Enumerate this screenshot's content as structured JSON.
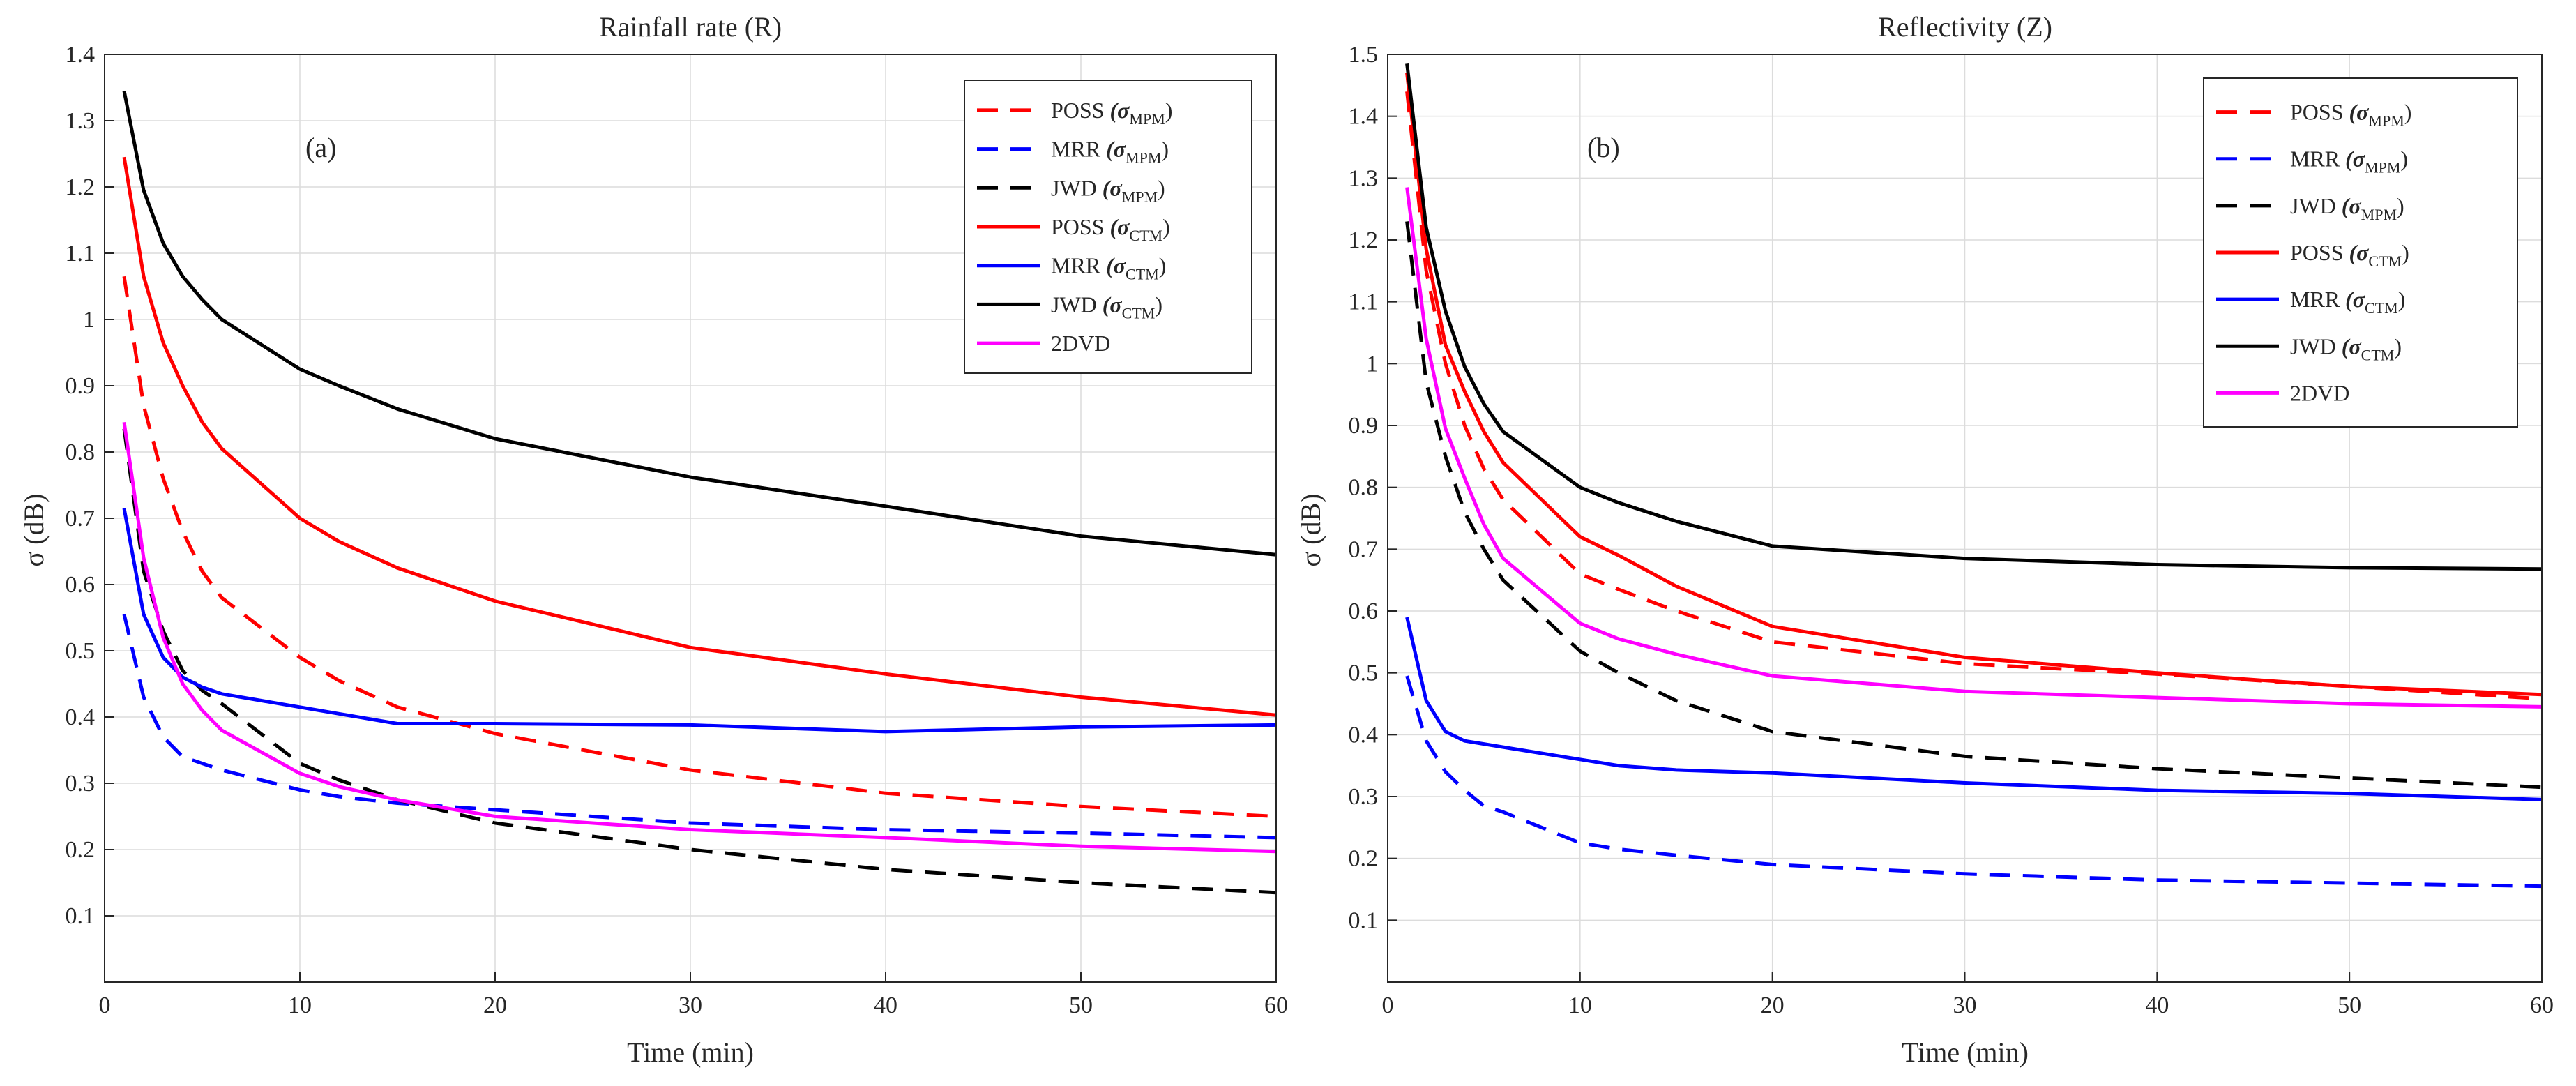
{
  "colors": {
    "red": "#ff0000",
    "blue": "#0000ff",
    "black": "#000000",
    "magenta": "#ff00ff",
    "grid": "#dcdcdc",
    "axis": "#262626"
  },
  "chart_data": [
    {
      "type": "line",
      "title": "Rainfall rate (R)",
      "panel_tag": "(a)",
      "xlabel": "Time (min)",
      "ylabel": "σ (dB)",
      "xlim": [
        0,
        60
      ],
      "ylim": [
        0,
        1.4
      ],
      "xticks": [
        0,
        10,
        20,
        30,
        40,
        50,
        60
      ],
      "yticks": [
        0.1,
        0.2,
        0.3,
        0.4,
        0.5,
        0.6,
        0.7,
        0.8,
        0.9,
        1,
        1.1,
        1.2,
        1.3,
        1.4
      ],
      "grid": true,
      "legend_position": "top-right",
      "x": [
        1,
        2,
        3,
        4,
        5,
        6,
        10,
        12,
        15,
        20,
        30,
        40,
        50,
        60
      ],
      "series": [
        {
          "name": "POSS",
          "sub": "MPM",
          "color": "red",
          "dash": true,
          "values": [
            1.065,
            0.87,
            0.76,
            0.68,
            0.62,
            0.58,
            0.49,
            0.455,
            0.415,
            0.375,
            0.32,
            0.285,
            0.265,
            0.25
          ]
        },
        {
          "name": "MRR",
          "sub": "MPM",
          "color": "blue",
          "dash": true,
          "values": [
            0.555,
            0.43,
            0.37,
            0.34,
            0.33,
            0.32,
            0.29,
            0.28,
            0.27,
            0.26,
            0.24,
            0.23,
            0.225,
            0.218
          ]
        },
        {
          "name": "JWD",
          "sub": "MPM",
          "color": "black",
          "dash": true,
          "values": [
            0.835,
            0.62,
            0.53,
            0.47,
            0.44,
            0.42,
            0.33,
            0.305,
            0.275,
            0.24,
            0.2,
            0.17,
            0.15,
            0.135
          ]
        },
        {
          "name": "POSS",
          "sub": "CTM",
          "color": "red",
          "dash": false,
          "values": [
            1.245,
            1.065,
            0.965,
            0.9,
            0.845,
            0.805,
            0.7,
            0.665,
            0.625,
            0.575,
            0.505,
            0.465,
            0.43,
            0.403
          ]
        },
        {
          "name": "MRR",
          "sub": "CTM",
          "color": "blue",
          "dash": false,
          "values": [
            0.715,
            0.555,
            0.49,
            0.46,
            0.445,
            0.435,
            0.415,
            0.405,
            0.39,
            0.39,
            0.388,
            0.378,
            0.385,
            0.388
          ]
        },
        {
          "name": "JWD",
          "sub": "CTM",
          "color": "black",
          "dash": false,
          "values": [
            1.345,
            1.195,
            1.115,
            1.065,
            1.03,
            1.0,
            0.925,
            0.9,
            0.865,
            0.82,
            0.762,
            0.718,
            0.673,
            0.645
          ]
        },
        {
          "name": "2DVD",
          "sub": "",
          "color": "magenta",
          "dash": false,
          "values": [
            0.845,
            0.64,
            0.52,
            0.45,
            0.41,
            0.38,
            0.315,
            0.295,
            0.275,
            0.25,
            0.23,
            0.218,
            0.205,
            0.197
          ]
        }
      ]
    },
    {
      "type": "line",
      "title": "Reflectivity (Z)",
      "panel_tag": "(b)",
      "xlabel": "Time (min)",
      "ylabel": "σ (dB)",
      "xlim": [
        0,
        60
      ],
      "ylim": [
        0,
        1.5
      ],
      "xticks": [
        0,
        10,
        20,
        30,
        40,
        50,
        60
      ],
      "yticks": [
        0.1,
        0.2,
        0.3,
        0.4,
        0.5,
        0.6,
        0.7,
        0.8,
        0.9,
        1,
        1.1,
        1.2,
        1.3,
        1.4,
        1.5
      ],
      "grid": true,
      "legend_position": "top-right",
      "x": [
        1,
        2,
        3,
        4,
        5,
        6,
        10,
        12,
        15,
        20,
        30,
        40,
        50,
        60
      ],
      "series": [
        {
          "name": "POSS",
          "sub": "MPM",
          "color": "red",
          "dash": true,
          "values": [
            1.44,
            1.15,
            1.0,
            0.9,
            0.83,
            0.78,
            0.66,
            0.635,
            0.6,
            0.55,
            0.515,
            0.498,
            0.478,
            0.458
          ]
        },
        {
          "name": "MRR",
          "sub": "MPM",
          "color": "blue",
          "dash": true,
          "values": [
            0.495,
            0.39,
            0.34,
            0.31,
            0.285,
            0.275,
            0.225,
            0.215,
            0.205,
            0.19,
            0.175,
            0.165,
            0.16,
            0.155
          ]
        },
        {
          "name": "JWD",
          "sub": "MPM",
          "color": "black",
          "dash": true,
          "values": [
            1.23,
            0.97,
            0.85,
            0.76,
            0.7,
            0.65,
            0.535,
            0.5,
            0.455,
            0.405,
            0.365,
            0.345,
            0.33,
            0.315
          ]
        },
        {
          "name": "POSS",
          "sub": "CTM",
          "color": "red",
          "dash": false,
          "values": [
            1.47,
            1.185,
            1.03,
            0.955,
            0.89,
            0.84,
            0.72,
            0.69,
            0.64,
            0.575,
            0.525,
            0.5,
            0.478,
            0.465
          ]
        },
        {
          "name": "MRR",
          "sub": "CTM",
          "color": "blue",
          "dash": false,
          "values": [
            0.59,
            0.455,
            0.405,
            0.39,
            0.385,
            0.38,
            0.36,
            0.35,
            0.343,
            0.338,
            0.322,
            0.31,
            0.305,
            0.295
          ]
        },
        {
          "name": "JWD",
          "sub": "CTM",
          "color": "black",
          "dash": false,
          "values": [
            1.485,
            1.22,
            1.085,
            0.995,
            0.935,
            0.89,
            0.8,
            0.775,
            0.745,
            0.705,
            0.685,
            0.675,
            0.67,
            0.668
          ]
        },
        {
          "name": "2DVD",
          "sub": "",
          "color": "magenta",
          "dash": false,
          "values": [
            1.285,
            1.04,
            0.895,
            0.815,
            0.74,
            0.685,
            0.58,
            0.555,
            0.53,
            0.495,
            0.47,
            0.46,
            0.45,
            0.445
          ]
        }
      ]
    }
  ]
}
